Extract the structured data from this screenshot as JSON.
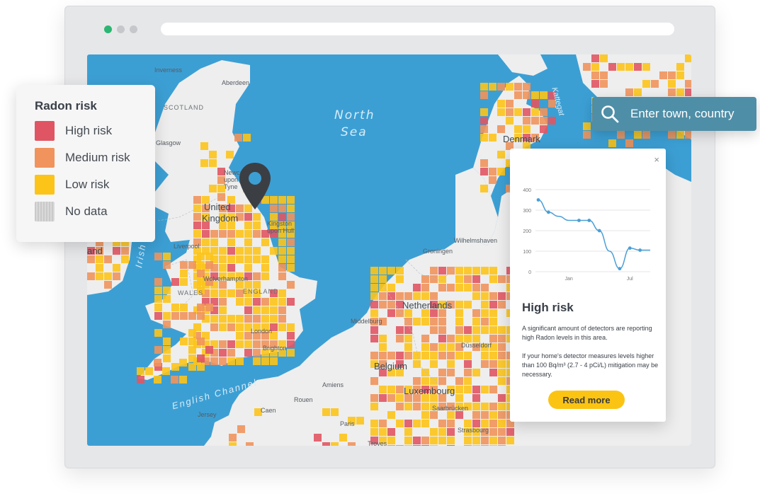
{
  "browser": {
    "window_dots": [
      "green",
      "gray",
      "gray"
    ]
  },
  "colors": {
    "high": "#e05563",
    "medium": "#f0935c",
    "low": "#fcc419",
    "nodata": "#c9c9c9",
    "water": "#3c9fd4",
    "land": "#eeeeee",
    "accent": "#4f8ea7",
    "button": "#fbc413"
  },
  "legend": {
    "title": "Radon risk",
    "items": [
      {
        "label": "High risk",
        "color": "#e05563"
      },
      {
        "label": "Medium risk",
        "color": "#f0935c"
      },
      {
        "label": "Low risk",
        "color": "#fcc419"
      },
      {
        "label": "No data",
        "color": "#c9c9c9"
      }
    ]
  },
  "search": {
    "placeholder": "Enter town, country",
    "icon": "search-icon"
  },
  "map": {
    "labels": {
      "north_sea_1": "North",
      "north_sea_2": "Sea",
      "irish_sea": "Irish Sea",
      "english_channel": "English Channel",
      "kattegat": "Kattegat",
      "denmark": "Denmark",
      "scotland": "SCOTLAND",
      "wales": "WALES",
      "uk_1": "United",
      "uk_2": "Kingdom",
      "netherlands": "Netherlands",
      "belgium": "Belgium",
      "luxembourg": "Luxembourg",
      "inverness": "Inverness",
      "aberdeen": "Aberdeen",
      "glasgow": "Glasgow",
      "newcastle": "Newcastle upon Tyne",
      "kingston": "Kingston upon Hull",
      "liverpool": "Liverpool",
      "wolverhampton": "Wolverhampton",
      "england": "ENGLAND",
      "london": "London",
      "brighton": "Brighton",
      "jersey": "Jersey",
      "caen": "Caen",
      "amiens": "Amiens",
      "rouen": "Rouen",
      "paris": "Paris",
      "troyes": "Troyes",
      "strasbourg": "Strasbourg",
      "saarbrucken": "Saarbrücken",
      "wilhelmshaven": "Wilhelmshaven",
      "groningen": "Groningen",
      "middelburg": "Middelburg",
      "dusseldorf": "Düsseldorf",
      "ireland": "and"
    }
  },
  "popup": {
    "close": "×",
    "title": "High risk",
    "text1": "A significant amount of detectors are reporting high Radon levels in this area.",
    "text2": "If your home's detector measures levels higher than 100 Bq/m³ (2.7 - 4 pCi/L) mitigation may be necessary.",
    "button": "Read more"
  },
  "chart_data": {
    "type": "line",
    "title": "",
    "xlabel": "",
    "ylabel": "",
    "x": [
      0,
      1,
      2,
      3,
      4,
      5,
      6,
      7,
      8,
      9,
      10,
      11
    ],
    "values": [
      350,
      290,
      270,
      250,
      250,
      250,
      200,
      100,
      15,
      115,
      105,
      105
    ],
    "x_tick_labels": [
      {
        "index": 3,
        "label": "Jan"
      },
      {
        "index": 9,
        "label": "Jul"
      }
    ],
    "ylim": [
      0,
      400
    ],
    "yticks": [
      0,
      100,
      200,
      300,
      400
    ],
    "grid": true,
    "color": "#4a9fd6"
  }
}
